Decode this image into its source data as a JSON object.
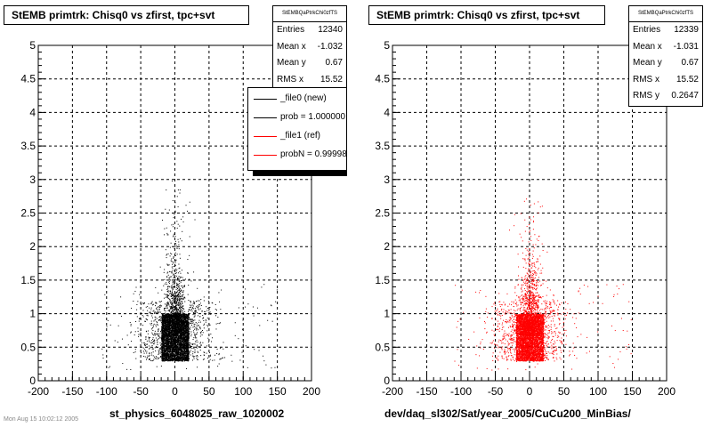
{
  "panels": [
    {
      "title": "StEMB primtrk: Chisq0 vs zfirst, tpc+svt",
      "stats_name": "StEMBQaPtrkChi0zfTS",
      "stats": [
        {
          "label": "Entries",
          "value": "12340"
        },
        {
          "label": "Mean x",
          "value": "-1.032"
        },
        {
          "label": "Mean y",
          "value": "0.67"
        },
        {
          "label": "RMS x",
          "value": "15.52"
        }
      ],
      "xlabel": "st_physics_6048025_raw_1020002",
      "legend": [
        {
          "text": "_file0 (new)",
          "color": "#000000"
        },
        {
          "text": "prob = 1.000000",
          "color": "#000000"
        },
        {
          "text": "_file1 (ref)",
          "color": "#ff0000"
        },
        {
          "text": "probN = 0.99998",
          "color": "#ff0000"
        }
      ]
    },
    {
      "title": "StEMB primtrk: Chisq0 vs zfirst, tpc+svt",
      "stats_name": "StEMBQaPtrkChi0zfTS",
      "stats": [
        {
          "label": "Entries",
          "value": "12339"
        },
        {
          "label": "Mean x",
          "value": "-1.031"
        },
        {
          "label": "Mean y",
          "value": "0.67"
        },
        {
          "label": "RMS x",
          "value": "15.52"
        },
        {
          "label": "RMS y",
          "value": "0.2647"
        }
      ],
      "xlabel": "dev/daq_sl302/Sat/year_2005/CuCu200_MinBias/"
    }
  ],
  "footer": "Mon Aug 15 10:02:12 2005",
  "chart_data": [
    {
      "type": "scatter",
      "title": "StEMB primtrk: Chisq0 vs zfirst, tpc+svt",
      "xlabel": "st_physics_6048025_raw_1020002",
      "ylabel": "",
      "xlim": [
        -200,
        200
      ],
      "ylim": [
        0,
        5
      ],
      "xticks": [
        -200,
        -150,
        -100,
        -50,
        0,
        50,
        100,
        150,
        200
      ],
      "yticks": [
        0,
        0.5,
        1,
        1.5,
        2,
        2.5,
        3,
        3.5,
        4,
        4.5,
        5
      ],
      "grid": true,
      "color": "#000000",
      "series": [
        {
          "name": "_file0 (new)",
          "entries": 12340,
          "mean_x": -1.032,
          "mean_y": 0.67,
          "rms_x": 15.52,
          "core_x": [
            -20,
            20
          ],
          "core_y": [
            0.3,
            1.0
          ]
        }
      ]
    },
    {
      "type": "scatter",
      "title": "StEMB primtrk: Chisq0 vs zfirst, tpc+svt",
      "xlabel": "dev/daq_sl302/Sat/year_2005/CuCu200_MinBias/",
      "ylabel": "",
      "xlim": [
        -200,
        200
      ],
      "ylim": [
        0,
        5
      ],
      "xticks": [
        -200,
        -150,
        -100,
        -50,
        0,
        50,
        100,
        150,
        200
      ],
      "yticks": [
        0,
        0.5,
        1,
        1.5,
        2,
        2.5,
        3,
        3.5,
        4,
        4.5,
        5
      ],
      "grid": true,
      "color": "#ff0000",
      "series": [
        {
          "name": "_file1 (ref)",
          "entries": 12339,
          "mean_x": -1.031,
          "mean_y": 0.67,
          "rms_x": 15.52,
          "rms_y": 0.2647,
          "core_x": [
            -20,
            20
          ],
          "core_y": [
            0.3,
            1.0
          ]
        }
      ]
    }
  ]
}
